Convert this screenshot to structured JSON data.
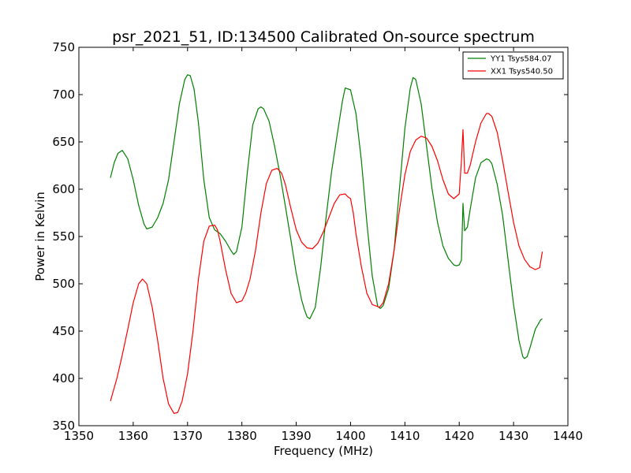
{
  "chart_data": {
    "type": "line",
    "title": "psr_2021_51, ID:134500 Calibrated On-source spectrum",
    "xlabel": "Frequency (MHz)",
    "ylabel": "Power in Kelvin",
    "xlim": [
      1350,
      1440
    ],
    "ylim": [
      350,
      750
    ],
    "xticks": [
      1350,
      1360,
      1370,
      1380,
      1390,
      1400,
      1410,
      1420,
      1430,
      1440
    ],
    "yticks": [
      350,
      400,
      450,
      500,
      550,
      600,
      650,
      700,
      750
    ],
    "grid": false,
    "legend_position": "top-right",
    "series": [
      {
        "name": "YY1 Tsys584.07",
        "color": "#008000",
        "x": [
          1355.8,
          1356.5,
          1357.2,
          1358.0,
          1359.0,
          1360.0,
          1361.0,
          1362.0,
          1362.5,
          1363.5,
          1364.5,
          1365.5,
          1366.5,
          1367.5,
          1368.5,
          1369.5,
          1370.0,
          1370.5,
          1371.2,
          1372.0,
          1373.0,
          1374.0,
          1375.0,
          1376.0,
          1377.0,
          1378.0,
          1378.5,
          1379.0,
          1380.0,
          1381.0,
          1382.0,
          1383.0,
          1383.5,
          1384.0,
          1385.0,
          1386.0,
          1387.0,
          1388.0,
          1389.0,
          1390.0,
          1391.0,
          1391.5,
          1392.0,
          1392.5,
          1393.5,
          1394.5,
          1395.5,
          1396.5,
          1397.5,
          1398.5,
          1399.0,
          1400.0,
          1401.0,
          1402.0,
          1403.0,
          1404.0,
          1405.0,
          1405.5,
          1406.0,
          1407.0,
          1408.0,
          1409.0,
          1410.0,
          1411.0,
          1411.5,
          1412.0,
          1413.0,
          1414.0,
          1415.0,
          1416.0,
          1417.0,
          1418.0,
          1419.0,
          1419.5,
          1420.0,
          1420.4,
          1420.7,
          1421.0,
          1421.5,
          1422.0,
          1423.0,
          1424.0,
          1425.0,
          1425.5,
          1426.0,
          1427.0,
          1428.0,
          1429.0,
          1430.0,
          1431.0,
          1431.7,
          1432.0,
          1432.5,
          1433.0,
          1434.0,
          1435.0,
          1435.3
        ],
        "values": [
          612,
          628,
          638,
          641,
          632,
          610,
          583,
          563,
          558,
          560,
          570,
          585,
          610,
          650,
          690,
          716,
          721,
          720,
          706,
          670,
          610,
          570,
          557,
          553,
          545,
          535,
          531,
          534,
          560,
          618,
          668,
          685,
          687,
          685,
          672,
          646,
          616,
          582,
          547,
          511,
          483,
          473,
          465,
          463,
          475,
          518,
          570,
          618,
          656,
          693,
          707,
          705,
          680,
          630,
          565,
          508,
          476,
          474,
          477,
          495,
          535,
          600,
          664,
          707,
          718,
          716,
          690,
          645,
          600,
          565,
          540,
          527,
          520,
          519,
          520,
          525,
          585,
          556,
          560,
          578,
          612,
          628,
          632,
          631,
          627,
          605,
          572,
          525,
          478,
          440,
          423,
          421,
          423,
          432,
          452,
          462,
          463
        ]
      },
      {
        "name": "XX1 Tsys540.50",
        "color": "#ff0000",
        "x": [
          1355.8,
          1357.0,
          1358.0,
          1359.0,
          1360.0,
          1361.0,
          1361.7,
          1362.5,
          1363.5,
          1364.5,
          1365.5,
          1366.5,
          1367.5,
          1368.2,
          1369.0,
          1370.0,
          1371.0,
          1372.0,
          1373.0,
          1374.0,
          1375.0,
          1375.5,
          1376.0,
          1377.0,
          1378.0,
          1379.0,
          1380.0,
          1380.7,
          1381.5,
          1382.5,
          1383.5,
          1384.5,
          1385.5,
          1386.5,
          1387.3,
          1388.0,
          1389.0,
          1390.0,
          1391.0,
          1392.0,
          1393.0,
          1394.0,
          1395.0,
          1396.0,
          1397.0,
          1398.0,
          1399.0,
          1399.5,
          1400.0,
          1400.5,
          1401.0,
          1402.0,
          1403.0,
          1404.0,
          1405.0,
          1405.3,
          1406.0,
          1407.0,
          1408.0,
          1409.0,
          1410.0,
          1411.0,
          1412.0,
          1413.0,
          1414.0,
          1415.0,
          1416.0,
          1417.0,
          1418.0,
          1419.0,
          1420.0,
          1420.4,
          1420.7,
          1421.0,
          1421.5,
          1422.0,
          1423.0,
          1424.0,
          1425.0,
          1425.4,
          1426.0,
          1427.0,
          1428.0,
          1429.0,
          1430.0,
          1431.0,
          1432.0,
          1433.0,
          1434.0,
          1434.8,
          1435.3
        ],
        "values": [
          376,
          400,
          425,
          452,
          480,
          500,
          505,
          500,
          475,
          440,
          400,
          373,
          363,
          364,
          376,
          405,
          450,
          505,
          545,
          561,
          562,
          557,
          545,
          515,
          490,
          480,
          482,
          490,
          505,
          535,
          575,
          606,
          620,
          622,
          617,
          605,
          580,
          557,
          544,
          538,
          537,
          543,
          555,
          570,
          585,
          594,
          595,
          592,
          590,
          575,
          553,
          518,
          490,
          478,
          476,
          475,
          480,
          500,
          535,
          578,
          615,
          640,
          652,
          656,
          654,
          645,
          630,
          610,
          595,
          590,
          595,
          630,
          663,
          617,
          617,
          625,
          650,
          670,
          680,
          680,
          677,
          660,
          630,
          597,
          565,
          540,
          526,
          518,
          515,
          517,
          534
        ]
      }
    ]
  }
}
